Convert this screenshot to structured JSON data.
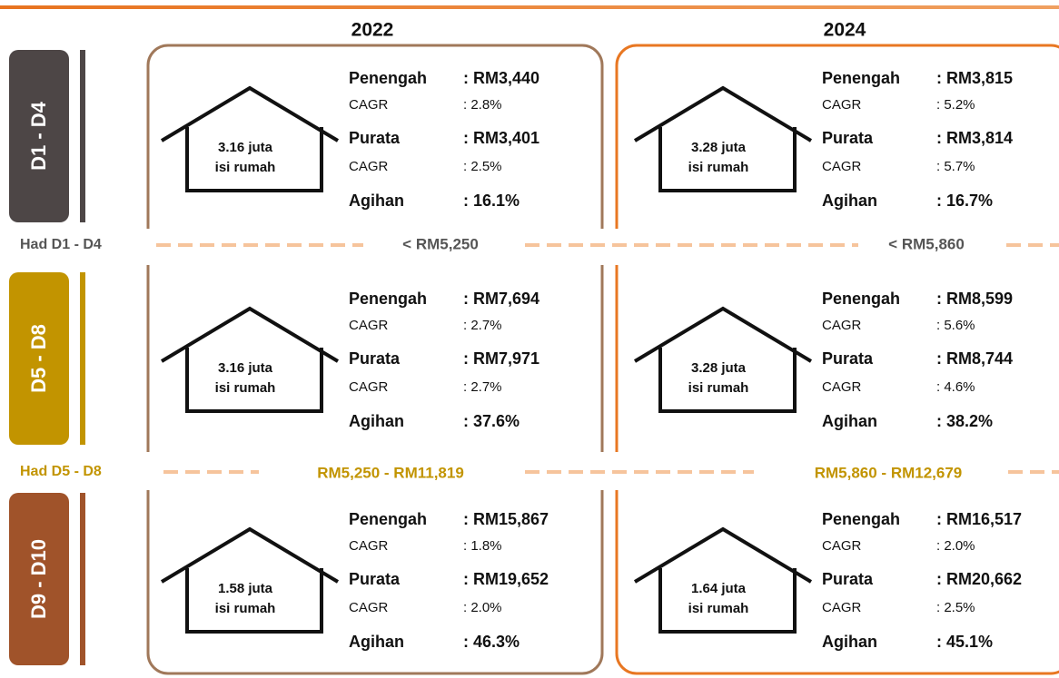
{
  "columns": [
    "2022",
    "2024"
  ],
  "labels": {
    "median": "Penengah",
    "cagr": "CAGR",
    "mean": "Purata",
    "share": "Agihan",
    "households": "isi rumah"
  },
  "groups": [
    {
      "label": "D1 - D4",
      "cells": [
        {
          "households": "3.16 juta",
          "median": ": RM3,440",
          "median_cagr": ": 2.8%",
          "mean": ": RM3,401",
          "mean_cagr": ": 2.5%",
          "share": ": 16.1%"
        },
        {
          "households": "3.28 juta",
          "median": ": RM3,815",
          "median_cagr": ": 5.2%",
          "mean": ": RM3,814",
          "mean_cagr": ": 5.7%",
          "share": ": 16.7%"
        }
      ]
    },
    {
      "label": "D5 - D8",
      "cells": [
        {
          "households": "3.16 juta",
          "median": ": RM7,694",
          "median_cagr": ": 2.7%",
          "mean": ": RM7,971",
          "mean_cagr": ": 2.7%",
          "share": ": 37.6%"
        },
        {
          "households": "3.28 juta",
          "median": ": RM8,599",
          "median_cagr": ": 5.6%",
          "mean": ": RM8,744",
          "mean_cagr": ": 4.6%",
          "share": ": 38.2%"
        }
      ]
    },
    {
      "label": "D9 - D10",
      "cells": [
        {
          "households": "1.58 juta",
          "median": ": RM15,867",
          "median_cagr": ": 1.8%",
          "mean": ": RM19,652",
          "mean_cagr": ": 2.0%",
          "share": ": 46.3%"
        },
        {
          "households": "1.64 juta",
          "median": ": RM16,517",
          "median_cagr": ": 2.0%",
          "mean": ": RM20,662",
          "mean_cagr": ": 2.5%",
          "share": ": 45.1%"
        }
      ]
    }
  ],
  "thresholds": [
    {
      "label": "Had D1 - D4",
      "values": [
        "< RM5,250",
        "< RM5,860"
      ]
    },
    {
      "label": "Had D5 - D8",
      "values": [
        "RM5,250 - RM11,819",
        "RM5,860 - RM12,679"
      ]
    }
  ]
}
